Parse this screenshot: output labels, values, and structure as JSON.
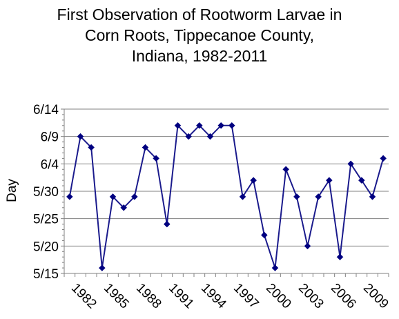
{
  "chart_data": {
    "type": "line",
    "title": [
      "First Observation of Rootworm Larvae in",
      "Corn Roots, Tippecanoe County,",
      "Indiana, 1982-2011"
    ],
    "xlabel": "",
    "ylabel": "Day",
    "grid": true,
    "y_tick_labels": [
      "5/15",
      "5/20",
      "5/25",
      "5/30",
      "6/4",
      "6/9",
      "6/14"
    ],
    "y_tick_values": [
      0,
      5,
      10,
      15,
      20,
      25,
      30
    ],
    "ylim": [
      0,
      30
    ],
    "x_tick_labels": [
      "1982",
      "1985",
      "1988",
      "1991",
      "1994",
      "1997",
      "2000",
      "2003",
      "2006",
      "2009"
    ],
    "x_tick_years": [
      1982,
      1985,
      1988,
      1991,
      1994,
      1997,
      2000,
      2003,
      2006,
      2009
    ],
    "xlim": [
      1980.5,
      2010.5
    ],
    "line_color": "#1a1a8c",
    "marker_color": "#000080",
    "series": [
      {
        "x": [
          1981,
          1982,
          1983,
          1984,
          1985,
          1986,
          1987,
          1988,
          1989,
          1990,
          1991,
          1992,
          1993,
          1994,
          1995,
          1996,
          1997,
          1998,
          1999,
          2000,
          2001,
          2002,
          2003,
          2004,
          2005,
          2006,
          2007,
          2008,
          2009,
          2010
        ],
        "values": [
          14,
          25,
          23,
          1,
          14,
          12,
          14,
          23,
          21,
          9,
          27,
          25,
          27,
          25,
          27,
          27,
          14,
          17,
          7,
          1,
          19,
          14,
          5,
          14,
          17,
          3,
          20,
          17,
          14,
          21
        ]
      }
    ]
  }
}
